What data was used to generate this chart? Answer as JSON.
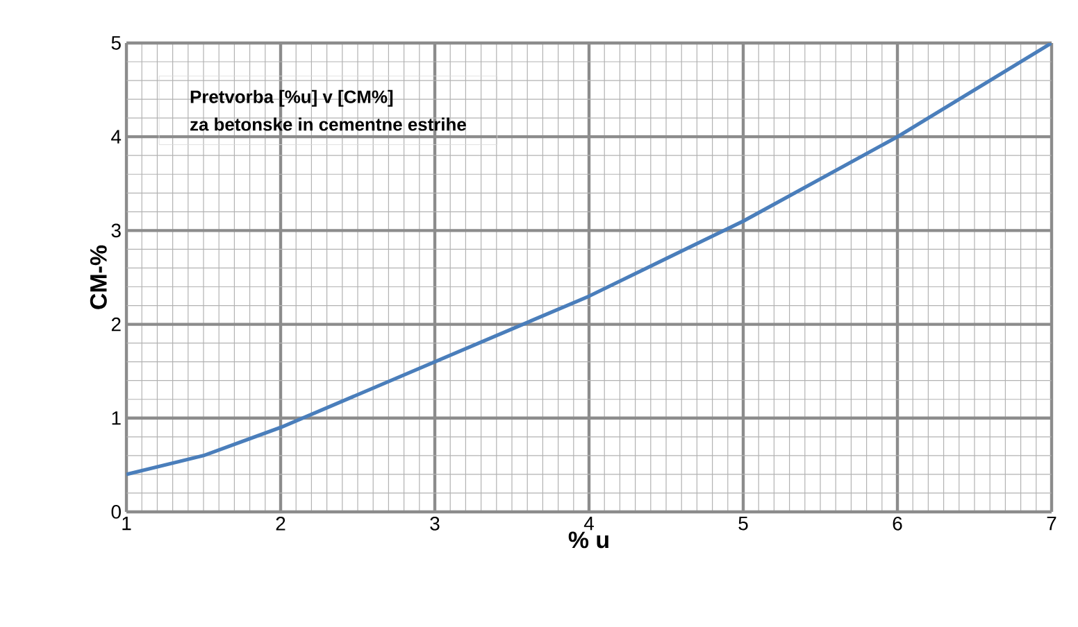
{
  "chart_data": {
    "type": "line",
    "title": "Pretvorba [%u] v [CM%]",
    "subtitle": "za betonske in cementne estrihe",
    "xlabel": "% u",
    "ylabel": "CM-%",
    "x": [
      1,
      1.5,
      1.8,
      2,
      2.5,
      3,
      3.5,
      4,
      4.5,
      5,
      5.5,
      6,
      6.5,
      7
    ],
    "series": [
      {
        "color": "#4a7ebb",
        "values": [
          0.4,
          0.6,
          0.78,
          0.9,
          1.25,
          1.6,
          1.95,
          2.3,
          2.7,
          3.1,
          3.55,
          4.0,
          4.5,
          5.0
        ]
      }
    ],
    "xlim": [
      1,
      7
    ],
    "ylim": [
      0,
      5
    ],
    "xticks": [
      1,
      2,
      3,
      4,
      5,
      6,
      7
    ],
    "yticks": [
      0,
      1,
      2,
      3,
      4,
      5
    ],
    "grid": true,
    "marker": "none",
    "line_style": "solid"
  }
}
